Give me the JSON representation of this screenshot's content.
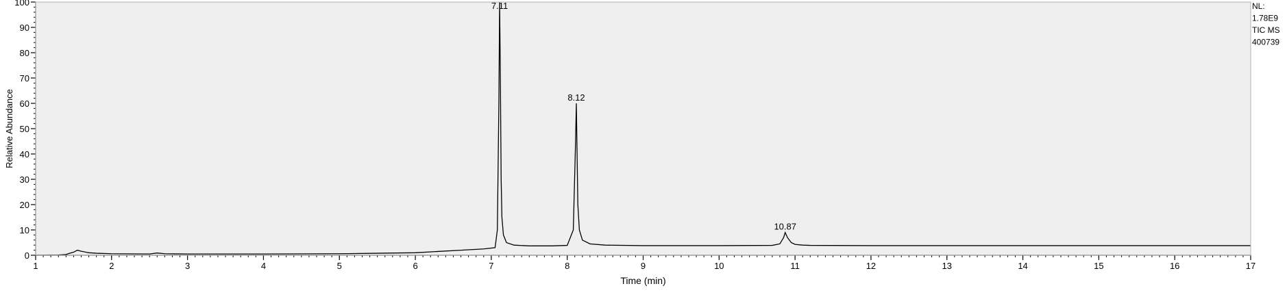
{
  "chart_data": {
    "type": "line",
    "xlabel": "Time (min)",
    "ylabel": "Relative Abundance",
    "xlim": [
      1,
      17
    ],
    "ylim": [
      0,
      100
    ],
    "x_ticks": [
      1,
      2,
      3,
      4,
      5,
      6,
      7,
      8,
      9,
      10,
      11,
      12,
      13,
      14,
      15,
      16,
      17
    ],
    "y_ticks": [
      0,
      10,
      20,
      30,
      40,
      50,
      60,
      70,
      80,
      90,
      100
    ],
    "minor_x_step": 0.1,
    "minor_y_step": 2,
    "grid": false,
    "colors": {
      "plot_bg": "#efefef",
      "line": "#000000",
      "axis": "#000000",
      "text": "#000000"
    },
    "info_text": [
      "NL:",
      "1.78E9",
      "TIC  MS",
      "400739"
    ],
    "peak_labels": [
      {
        "text": "7.11",
        "x": 7.11,
        "y": 100
      },
      {
        "text": "8.12",
        "x": 8.12,
        "y": 60
      },
      {
        "text": "10.87",
        "x": 10.87,
        "y": 9
      }
    ],
    "series": [
      {
        "x": [
          1.0,
          1.3,
          1.4,
          1.45,
          1.5,
          1.55,
          1.6,
          1.7,
          1.8,
          2.0,
          2.5,
          2.6,
          2.7,
          3.0,
          4.0,
          5.0,
          5.5,
          6.0,
          6.3,
          6.6,
          6.9,
          7.05,
          7.08,
          7.1,
          7.11,
          7.12,
          7.13,
          7.14,
          7.16,
          7.2,
          7.3,
          7.5,
          7.8,
          8.0,
          8.08,
          8.11,
          8.12,
          8.13,
          8.14,
          8.16,
          8.2,
          8.3,
          8.5,
          9.0,
          10.0,
          10.7,
          10.8,
          10.85,
          10.87,
          10.9,
          10.95,
          11.0,
          11.1,
          11.2,
          12.0,
          14.0,
          17.0
        ],
        "y": [
          0.0,
          0.1,
          0.3,
          0.8,
          1.2,
          2.0,
          1.6,
          1.0,
          0.8,
          0.6,
          0.5,
          0.9,
          0.6,
          0.5,
          0.5,
          0.6,
          0.8,
          1.0,
          1.5,
          2.0,
          2.5,
          3.0,
          10.0,
          60.0,
          100.0,
          70.0,
          30.0,
          15.0,
          8.0,
          5.0,
          4.0,
          3.7,
          3.7,
          3.9,
          10.0,
          45.0,
          60.0,
          40.0,
          20.0,
          10.0,
          6.0,
          4.5,
          4.0,
          3.8,
          3.8,
          3.9,
          4.5,
          7.0,
          9.0,
          7.0,
          5.0,
          4.3,
          4.0,
          3.9,
          3.8,
          3.8,
          3.8
        ]
      }
    ]
  }
}
